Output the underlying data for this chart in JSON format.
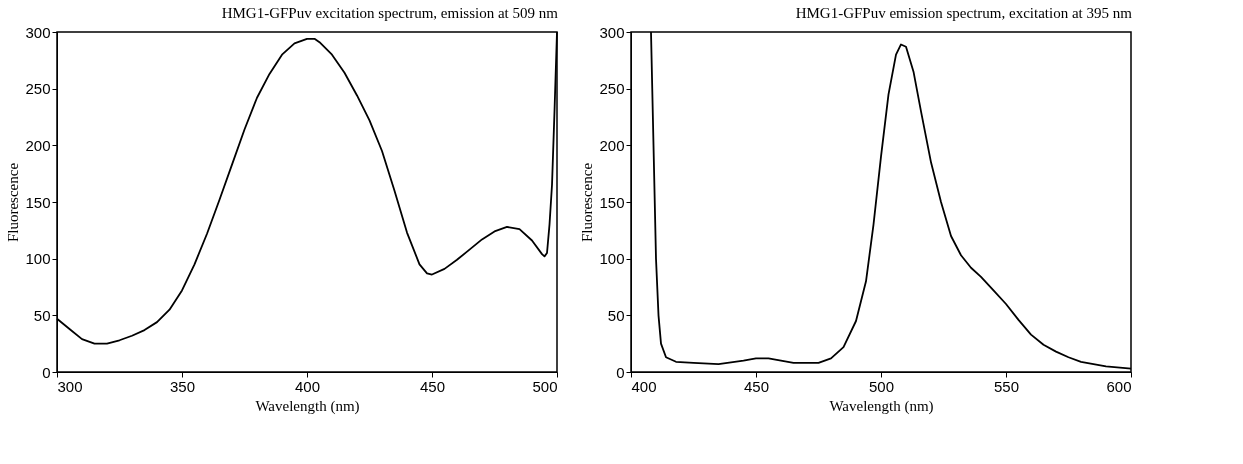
{
  "chart_data": [
    {
      "type": "line",
      "title": "HMG1-GFPuv excitation spectrum, emission at 509 nm",
      "xlabel": "Wavelength   (nm)",
      "ylabel": "Fluorescence",
      "xlim": [
        300,
        500
      ],
      "ylim": [
        0,
        300
      ],
      "xticks": [
        300,
        350,
        400,
        450,
        500
      ],
      "yticks": [
        0,
        50,
        100,
        150,
        200,
        250,
        300
      ],
      "grid": false,
      "series": [
        {
          "color": "#000000",
          "x": [
            300,
            305,
            310,
            315,
            320,
            325,
            330,
            335,
            340,
            345,
            350,
            355,
            360,
            365,
            370,
            375,
            380,
            385,
            390,
            395,
            400,
            403,
            405,
            410,
            415,
            420,
            425,
            430,
            435,
            440,
            445,
            448,
            450,
            455,
            460,
            465,
            470,
            475,
            480,
            485,
            490,
            494,
            495,
            496,
            497,
            498,
            499,
            500
          ],
          "values": [
            47,
            38,
            29,
            25,
            25,
            28,
            32,
            37,
            44,
            55,
            72,
            95,
            122,
            152,
            183,
            214,
            242,
            263,
            280,
            290,
            294,
            294,
            291,
            280,
            264,
            244,
            222,
            195,
            160,
            123,
            95,
            87,
            86,
            91,
            99,
            108,
            117,
            124,
            128,
            126,
            116,
            104,
            102,
            105,
            130,
            165,
            230,
            300
          ]
        }
      ]
    },
    {
      "type": "line",
      "title": "HMG1-GFPuv emission spectrum, excitation at 395 nm",
      "xlabel": "Wavelength   (nm)",
      "ylabel": "Fluorescence",
      "xlim": [
        400,
        600
      ],
      "ylim": [
        0,
        300
      ],
      "xticks": [
        400,
        450,
        500,
        550,
        600
      ],
      "yticks": [
        0,
        50,
        100,
        150,
        200,
        250,
        300
      ],
      "grid": false,
      "series": [
        {
          "color": "#000000",
          "x": [
            408,
            408.5,
            409,
            409.5,
            410,
            411,
            412,
            414,
            418,
            425,
            435,
            445,
            450,
            455,
            460,
            465,
            475,
            480,
            485,
            490,
            494,
            497,
            500,
            503,
            506,
            508,
            510,
            513,
            516,
            520,
            524,
            528,
            532,
            536,
            540,
            545,
            550,
            555,
            560,
            565,
            570,
            575,
            580,
            590,
            600
          ],
          "values": [
            300,
            250,
            200,
            150,
            100,
            50,
            25,
            13,
            9,
            8,
            7,
            10,
            12,
            12,
            10,
            8,
            8,
            12,
            22,
            45,
            80,
            130,
            190,
            245,
            280,
            289,
            287,
            265,
            230,
            185,
            150,
            120,
            103,
            92,
            84,
            72,
            60,
            46,
            33,
            24,
            18,
            13,
            9,
            5,
            3
          ]
        }
      ]
    }
  ]
}
